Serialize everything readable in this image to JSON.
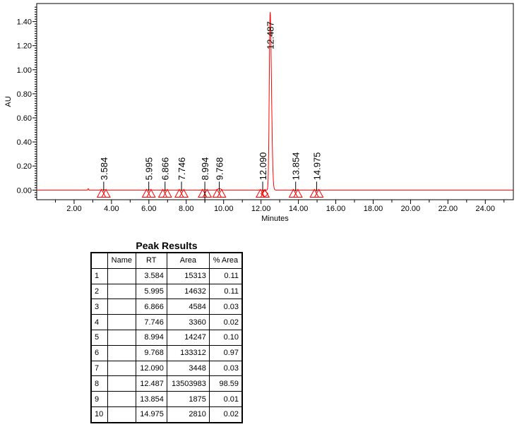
{
  "chart_data": {
    "type": "line",
    "title": "",
    "xlabel": "Minutes",
    "ylabel": "AU",
    "xlim": [
      0,
      25.5
    ],
    "ylim": [
      -0.08,
      1.55
    ],
    "xticks": [
      "2.00",
      "4.00",
      "6.00",
      "8.00",
      "10.00",
      "12.00",
      "14.00",
      "16.00",
      "18.00",
      "20.00",
      "22.00",
      "24.00"
    ],
    "yticks": [
      "0.00",
      "0.20",
      "0.40",
      "0.60",
      "0.80",
      "1.00",
      "1.20",
      "1.40"
    ],
    "grid": false,
    "line_color": "#ff0000",
    "marker_color": "#ff0000",
    "peaks": [
      {
        "rt": 3.584,
        "label": "3.584",
        "height": 0.003
      },
      {
        "rt": 5.995,
        "label": "5.995",
        "height": 0.003
      },
      {
        "rt": 6.866,
        "label": "6.866",
        "height": 0.001
      },
      {
        "rt": 7.746,
        "label": "7.746",
        "height": 0.001
      },
      {
        "rt": 8.994,
        "label": "8.994",
        "height": 0.002
      },
      {
        "rt": 9.768,
        "label": "9.768",
        "height": 0.012
      },
      {
        "rt": 12.09,
        "label": "12.090",
        "height": 0.001
      },
      {
        "rt": 12.487,
        "label": "12.487",
        "height": 1.48
      },
      {
        "rt": 13.854,
        "label": "13.854",
        "height": 0.001
      },
      {
        "rt": 14.975,
        "label": "14.975",
        "height": 0.001
      }
    ]
  },
  "table": {
    "title": "Peak Results",
    "headers": [
      "",
      "Name",
      "RT",
      "Area",
      "% Area"
    ],
    "rows": [
      [
        "1",
        "",
        "3.584",
        "15313",
        "0.11"
      ],
      [
        "2",
        "",
        "5.995",
        "14632",
        "0.11"
      ],
      [
        "3",
        "",
        "6.866",
        "4584",
        "0.03"
      ],
      [
        "4",
        "",
        "7.746",
        "3360",
        "0.02"
      ],
      [
        "5",
        "",
        "8.994",
        "14247",
        "0.10"
      ],
      [
        "6",
        "",
        "9.768",
        "133312",
        "0.97"
      ],
      [
        "7",
        "",
        "12.090",
        "3448",
        "0.03"
      ],
      [
        "8",
        "",
        "12.487",
        "13503983",
        "98.59"
      ],
      [
        "9",
        "",
        "13.854",
        "1875",
        "0.01"
      ],
      [
        "10",
        "",
        "14.975",
        "2810",
        "0.02"
      ]
    ]
  }
}
